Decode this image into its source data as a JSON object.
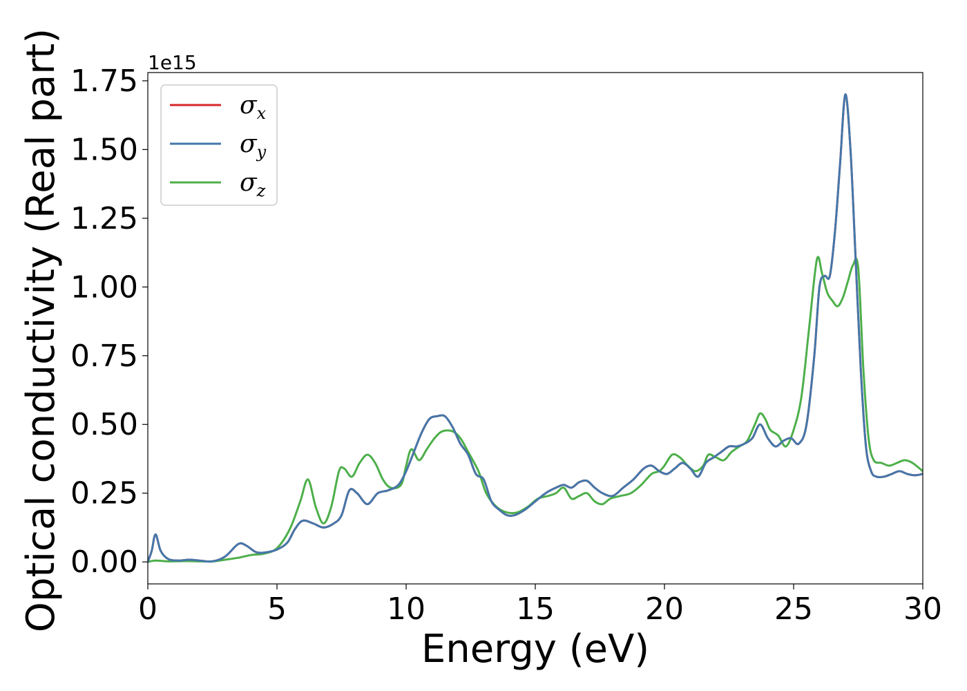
{
  "chart_data": {
    "type": "line",
    "xlabel": "Energy (eV)",
    "ylabel": "Optical conductivity (Real part)",
    "y_offset_label": "1e15",
    "xlim": [
      0,
      30
    ],
    "ylim": [
      -0.08,
      1.78
    ],
    "x_ticks": [
      0,
      5,
      10,
      15,
      20,
      25,
      30
    ],
    "x_tick_labels": [
      "0",
      "5",
      "10",
      "15",
      "20",
      "25",
      "30"
    ],
    "y_ticks": [
      0,
      0.25,
      0.5,
      0.75,
      1.0,
      1.25,
      1.5,
      1.75
    ],
    "y_tick_labels": [
      "0.00",
      "0.25",
      "0.50",
      "0.75",
      "1.00",
      "1.25",
      "1.50",
      "1.75"
    ],
    "grid": false,
    "legend_position": "top-left",
    "series": [
      {
        "name": "σx",
        "symbol": "σ",
        "subscript": "x",
        "color": "#d62728",
        "x": [
          0,
          0.15,
          0.3,
          0.5,
          0.8,
          1.2,
          1.6,
          2.0,
          2.5,
          3.0,
          3.5,
          3.8,
          4.2,
          4.6,
          5.0,
          5.4,
          5.7,
          6.0,
          6.4,
          6.8,
          7.2,
          7.5,
          7.8,
          8.1,
          8.5,
          8.9,
          9.3,
          9.7,
          10.0,
          10.3,
          10.6,
          10.9,
          11.2,
          11.5,
          11.8,
          12.1,
          12.4,
          12.7,
          13.0,
          13.3,
          13.6,
          13.9,
          14.2,
          14.6,
          15.0,
          15.4,
          15.8,
          16.1,
          16.4,
          16.7,
          17.0,
          17.3,
          17.6,
          18.0,
          18.4,
          18.8,
          19.2,
          19.5,
          19.8,
          20.1,
          20.4,
          20.7,
          21.0,
          21.3,
          21.6,
          21.9,
          22.2,
          22.5,
          22.8,
          23.1,
          23.4,
          23.7,
          24.0,
          24.3,
          24.6,
          24.9,
          25.2,
          25.5,
          25.8,
          26.0,
          26.2,
          26.4,
          26.6,
          26.8,
          27.0,
          27.2,
          27.4,
          27.6,
          27.8,
          28.0,
          28.2,
          28.5,
          28.8,
          29.1,
          29.4,
          29.7,
          30.0
        ],
        "values": [
          0.0,
          0.04,
          0.1,
          0.04,
          0.01,
          0.005,
          0.008,
          0.005,
          0.002,
          0.02,
          0.065,
          0.06,
          0.035,
          0.035,
          0.045,
          0.07,
          0.12,
          0.15,
          0.14,
          0.125,
          0.14,
          0.17,
          0.26,
          0.25,
          0.21,
          0.25,
          0.26,
          0.28,
          0.33,
          0.4,
          0.47,
          0.52,
          0.53,
          0.53,
          0.49,
          0.43,
          0.39,
          0.32,
          0.3,
          0.22,
          0.19,
          0.17,
          0.17,
          0.19,
          0.22,
          0.25,
          0.27,
          0.28,
          0.27,
          0.29,
          0.295,
          0.27,
          0.25,
          0.24,
          0.27,
          0.3,
          0.34,
          0.35,
          0.33,
          0.32,
          0.34,
          0.36,
          0.34,
          0.31,
          0.36,
          0.38,
          0.4,
          0.42,
          0.42,
          0.43,
          0.45,
          0.5,
          0.45,
          0.42,
          0.44,
          0.45,
          0.43,
          0.5,
          0.75,
          1.0,
          1.04,
          1.04,
          1.2,
          1.45,
          1.7,
          1.5,
          1.1,
          0.7,
          0.42,
          0.33,
          0.31,
          0.31,
          0.32,
          0.33,
          0.32,
          0.315,
          0.32
        ]
      },
      {
        "name": "σy",
        "symbol": "σ",
        "subscript": "y",
        "color": "#4477aa",
        "x": [
          0,
          0.15,
          0.3,
          0.5,
          0.8,
          1.2,
          1.6,
          2.0,
          2.5,
          3.0,
          3.5,
          3.8,
          4.2,
          4.6,
          5.0,
          5.4,
          5.7,
          6.0,
          6.4,
          6.8,
          7.2,
          7.5,
          7.8,
          8.1,
          8.5,
          8.9,
          9.3,
          9.7,
          10.0,
          10.3,
          10.6,
          10.9,
          11.2,
          11.5,
          11.8,
          12.1,
          12.4,
          12.7,
          13.0,
          13.3,
          13.6,
          13.9,
          14.2,
          14.6,
          15.0,
          15.4,
          15.8,
          16.1,
          16.4,
          16.7,
          17.0,
          17.3,
          17.6,
          18.0,
          18.4,
          18.8,
          19.2,
          19.5,
          19.8,
          20.1,
          20.4,
          20.7,
          21.0,
          21.3,
          21.6,
          21.9,
          22.2,
          22.5,
          22.8,
          23.1,
          23.4,
          23.7,
          24.0,
          24.3,
          24.6,
          24.9,
          25.2,
          25.5,
          25.8,
          26.0,
          26.2,
          26.4,
          26.6,
          26.8,
          27.0,
          27.2,
          27.4,
          27.6,
          27.8,
          28.0,
          28.2,
          28.5,
          28.8,
          29.1,
          29.4,
          29.7,
          30.0
        ],
        "values": [
          0.0,
          0.04,
          0.1,
          0.04,
          0.01,
          0.005,
          0.008,
          0.005,
          0.002,
          0.02,
          0.065,
          0.06,
          0.035,
          0.035,
          0.045,
          0.07,
          0.12,
          0.15,
          0.14,
          0.125,
          0.14,
          0.17,
          0.26,
          0.25,
          0.21,
          0.25,
          0.26,
          0.28,
          0.33,
          0.4,
          0.47,
          0.52,
          0.53,
          0.53,
          0.49,
          0.43,
          0.39,
          0.32,
          0.3,
          0.22,
          0.19,
          0.17,
          0.17,
          0.19,
          0.22,
          0.25,
          0.27,
          0.28,
          0.27,
          0.29,
          0.295,
          0.27,
          0.25,
          0.24,
          0.27,
          0.3,
          0.34,
          0.35,
          0.33,
          0.32,
          0.34,
          0.36,
          0.34,
          0.31,
          0.36,
          0.38,
          0.4,
          0.42,
          0.42,
          0.43,
          0.45,
          0.5,
          0.45,
          0.42,
          0.44,
          0.45,
          0.43,
          0.5,
          0.75,
          1.0,
          1.04,
          1.04,
          1.2,
          1.45,
          1.7,
          1.5,
          1.1,
          0.7,
          0.42,
          0.33,
          0.31,
          0.31,
          0.32,
          0.33,
          0.32,
          0.315,
          0.32
        ]
      },
      {
        "name": "σz",
        "symbol": "σ",
        "subscript": "z",
        "color": "#4daf4a",
        "x": [
          0,
          0.3,
          0.8,
          1.5,
          2.0,
          2.5,
          3.0,
          3.5,
          4.0,
          4.5,
          5.0,
          5.5,
          5.9,
          6.2,
          6.5,
          6.8,
          7.1,
          7.4,
          7.6,
          7.9,
          8.2,
          8.5,
          8.8,
          9.1,
          9.4,
          9.8,
          10.0,
          10.2,
          10.5,
          10.8,
          11.1,
          11.4,
          11.8,
          12.1,
          12.4,
          12.8,
          13.1,
          13.5,
          13.9,
          14.3,
          14.7,
          15.1,
          15.5,
          15.8,
          16.1,
          16.4,
          16.7,
          17.0,
          17.3,
          17.6,
          17.9,
          18.3,
          18.7,
          19.1,
          19.5,
          19.8,
          20.0,
          20.3,
          20.6,
          20.9,
          21.2,
          21.5,
          21.7,
          22.0,
          22.3,
          22.6,
          22.9,
          23.2,
          23.5,
          23.7,
          23.9,
          24.1,
          24.4,
          24.7,
          25.0,
          25.3,
          25.6,
          25.9,
          26.1,
          26.3,
          26.5,
          26.7,
          26.9,
          27.1,
          27.3,
          27.5,
          27.7,
          27.9,
          28.1,
          28.4,
          28.7,
          29.0,
          29.3,
          29.6,
          30.0
        ],
        "values": [
          0.0,
          0.005,
          0.002,
          0.003,
          0.002,
          0.002,
          0.008,
          0.015,
          0.025,
          0.03,
          0.05,
          0.12,
          0.22,
          0.3,
          0.2,
          0.14,
          0.2,
          0.33,
          0.34,
          0.31,
          0.36,
          0.39,
          0.36,
          0.3,
          0.27,
          0.28,
          0.35,
          0.41,
          0.37,
          0.41,
          0.45,
          0.475,
          0.475,
          0.45,
          0.4,
          0.33,
          0.25,
          0.2,
          0.18,
          0.18,
          0.2,
          0.23,
          0.24,
          0.25,
          0.27,
          0.23,
          0.24,
          0.25,
          0.22,
          0.21,
          0.23,
          0.24,
          0.25,
          0.28,
          0.32,
          0.33,
          0.35,
          0.39,
          0.38,
          0.35,
          0.33,
          0.35,
          0.39,
          0.38,
          0.37,
          0.4,
          0.42,
          0.44,
          0.5,
          0.54,
          0.52,
          0.48,
          0.46,
          0.42,
          0.48,
          0.6,
          0.85,
          1.1,
          1.05,
          0.98,
          0.95,
          0.93,
          0.96,
          1.02,
          1.08,
          1.07,
          0.7,
          0.45,
          0.37,
          0.36,
          0.35,
          0.36,
          0.37,
          0.36,
          0.33
        ]
      }
    ]
  }
}
